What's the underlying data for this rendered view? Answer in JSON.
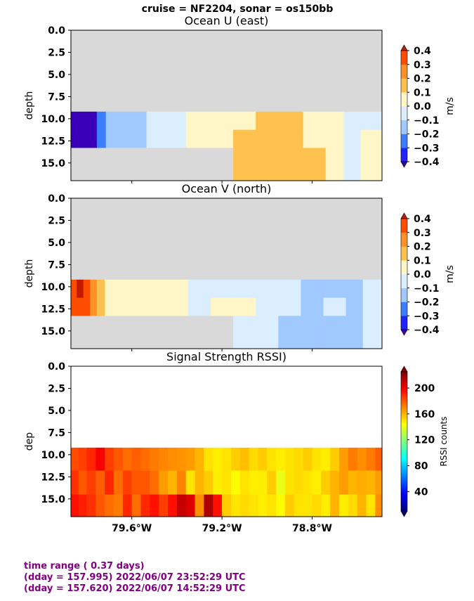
{
  "suptitle": "cruise = NF2204,  sonar = os150bb",
  "footer": {
    "line1": "time range ( 0.37 days)",
    "line2": "(dday = 157.995) 2022/06/07 23:52:29 UTC",
    "line3": "(dday = 157.620) 2022/06/07 14:52:29 UTC"
  },
  "x_axis": {
    "range": [
      79.87,
      78.49
    ],
    "ticks": [
      79.6,
      79.2,
      78.8
    ],
    "tick_labels": [
      "79.6°W",
      "79.2°W",
      "78.8°W"
    ]
  },
  "y_axis": {
    "range": [
      17,
      0
    ],
    "ticks": [
      0.0,
      2.5,
      5.0,
      7.5,
      10.0,
      12.5,
      15.0
    ],
    "tick_labels": [
      "0.0",
      "2.5",
      "5.0",
      "7.5",
      "10.0",
      "12.5",
      "15.0"
    ]
  },
  "colors": {
    "nodata": "#d9d9d9",
    "diverging_levels": [
      "#3a00b8",
      "#2222ff",
      "#3c7dff",
      "#a0c9ff",
      "#daeeff",
      "#fff6c8",
      "#ffc14d",
      "#ff9126",
      "#ff4d00",
      "#c41a00"
    ],
    "rssi_ramp": [
      "#00007f",
      "#0000ff",
      "#007fff",
      "#00ffff",
      "#7fff7f",
      "#ffff00",
      "#ff7f00",
      "#ff0000",
      "#7f0000"
    ]
  },
  "chart_data": [
    {
      "type": "heatmap",
      "title": "Ocean U (east)",
      "ylabel": "depth",
      "xlabel": "",
      "ylim": [
        17,
        0
      ],
      "colorbar": {
        "label": "m/s",
        "levels": [
          -0.4,
          -0.3,
          -0.2,
          -0.1,
          0.0,
          0.1,
          0.2,
          0.3,
          0.4
        ],
        "tick_labels": [
          "0.4",
          "0.3",
          "0.2",
          "0.1",
          "0.0",
          "−0.1",
          "−0.2",
          "−0.3",
          "−0.4"
        ]
      },
      "depths": [
        10.0,
        12.5,
        15.0
      ],
      "columns": [
        {
          "lon": 79.86,
          "values": [
            -0.42,
            -0.4,
            null
          ]
        },
        {
          "lon": 79.83,
          "values": [
            -0.42,
            -0.4,
            null
          ]
        },
        {
          "lon": 79.78,
          "values": [
            -0.42,
            -0.41,
            null
          ]
        },
        {
          "lon": 79.73,
          "values": [
            -0.3,
            -0.25,
            null
          ]
        },
        {
          "lon": 79.7,
          "values": [
            -0.15,
            -0.15,
            null
          ]
        },
        {
          "lon": 79.55,
          "values": [
            -0.15,
            -0.15,
            null
          ]
        },
        {
          "lon": 79.52,
          "values": [
            -0.05,
            -0.05,
            null
          ]
        },
        {
          "lon": 79.4,
          "values": [
            -0.05,
            -0.02,
            null
          ]
        },
        {
          "lon": 79.32,
          "values": [
            0.05,
            0.05,
            null
          ]
        },
        {
          "lon": 79.2,
          "values": [
            0.05,
            0.05,
            null
          ]
        },
        {
          "lon": 79.1,
          "values": [
            0.05,
            0.15,
            0.15
          ]
        },
        {
          "lon": 79.0,
          "values": [
            0.15,
            0.15,
            0.15
          ]
        },
        {
          "lon": 78.9,
          "values": [
            0.12,
            0.15,
            0.15
          ]
        },
        {
          "lon": 78.78,
          "values": [
            0.05,
            0.05,
            0.15
          ]
        },
        {
          "lon": 78.7,
          "values": [
            0.05,
            0.05,
            0.05
          ]
        },
        {
          "lon": 78.62,
          "values": [
            -0.05,
            -0.05,
            -0.05
          ]
        },
        {
          "lon": 78.55,
          "values": [
            -0.05,
            0.05,
            0.05
          ]
        },
        {
          "lon": 78.5,
          "values": [
            -0.05,
            0.05,
            0.05
          ]
        }
      ]
    },
    {
      "type": "heatmap",
      "title": "Ocean V (north)",
      "ylabel": "depth",
      "xlabel": "",
      "ylim": [
        17,
        0
      ],
      "colorbar": {
        "label": "m/s",
        "levels": [
          -0.4,
          -0.3,
          -0.2,
          -0.1,
          0.0,
          0.1,
          0.2,
          0.3,
          0.4
        ],
        "tick_labels": [
          "0.4",
          "0.3",
          "0.2",
          "0.1",
          "0.0",
          "−0.1",
          "−0.2",
          "−0.3",
          "−0.4"
        ]
      },
      "depths": [
        10.0,
        12.5,
        15.0
      ],
      "columns": [
        {
          "lon": 79.86,
          "values": [
            0.35,
            0.32,
            null
          ]
        },
        {
          "lon": 79.83,
          "values": [
            0.45,
            0.38,
            null
          ]
        },
        {
          "lon": 79.8,
          "values": [
            0.35,
            0.35,
            null
          ]
        },
        {
          "lon": 79.77,
          "values": [
            0.25,
            0.25,
            null
          ]
        },
        {
          "lon": 79.74,
          "values": [
            0.15,
            0.15,
            null
          ]
        },
        {
          "lon": 79.7,
          "values": [
            0.05,
            0.05,
            null
          ]
        },
        {
          "lon": 79.55,
          "values": [
            0.05,
            0.05,
            null
          ]
        },
        {
          "lon": 79.4,
          "values": [
            0.05,
            0.05,
            null
          ]
        },
        {
          "lon": 79.3,
          "values": [
            -0.05,
            -0.05,
            null
          ]
        },
        {
          "lon": 79.2,
          "values": [
            -0.05,
            0.05,
            null
          ]
        },
        {
          "lon": 79.1,
          "values": [
            -0.05,
            0.05,
            -0.05
          ]
        },
        {
          "lon": 79.0,
          "values": [
            -0.05,
            -0.05,
            -0.05
          ]
        },
        {
          "lon": 78.9,
          "values": [
            -0.05,
            -0.05,
            -0.15
          ]
        },
        {
          "lon": 78.8,
          "values": [
            -0.15,
            -0.15,
            -0.15
          ]
        },
        {
          "lon": 78.7,
          "values": [
            -0.15,
            -0.05,
            -0.15
          ]
        },
        {
          "lon": 78.6,
          "values": [
            -0.15,
            -0.15,
            -0.15
          ]
        },
        {
          "lon": 78.55,
          "values": [
            -0.05,
            -0.05,
            -0.05
          ]
        },
        {
          "lon": 78.5,
          "values": [
            -0.05,
            -0.05,
            -0.05
          ]
        }
      ]
    },
    {
      "type": "heatmap",
      "title": "Signal Strength RSSI)",
      "ylabel": "dep",
      "xlabel": "",
      "ylim": [
        17,
        0
      ],
      "colorbar": {
        "label": "RSSI counts",
        "range": [
          10,
          225
        ],
        "ticks": [
          40,
          80,
          120,
          160,
          200
        ],
        "tick_labels": [
          "40",
          "80",
          "120",
          "160",
          "200"
        ]
      },
      "depths": [
        10.0,
        12.5,
        15.0
      ],
      "x_edges": [
        79.87,
        79.836,
        79.8,
        79.76,
        79.72,
        79.68,
        79.64,
        79.6,
        79.56,
        79.52,
        79.48,
        79.44,
        79.4,
        79.36,
        79.32,
        79.28,
        79.24,
        79.2,
        79.16,
        79.12,
        79.08,
        79.04,
        79.0,
        78.96,
        78.92,
        78.88,
        78.84,
        78.8,
        78.76,
        78.72,
        78.68,
        78.64,
        78.6,
        78.56,
        78.52,
        78.49
      ],
      "rows": [
        [
          182,
          185,
          190,
          200,
          185,
          180,
          175,
          178,
          175,
          172,
          170,
          168,
          167,
          165,
          160,
          150,
          148,
          150,
          155,
          158,
          152,
          155,
          150,
          148,
          150,
          152,
          155,
          150,
          148,
          155,
          165,
          172,
          168,
          172,
          178
        ],
        [
          188,
          180,
          185,
          178,
          190,
          175,
          185,
          180,
          180,
          175,
          165,
          160,
          170,
          150,
          160,
          155,
          148,
          150,
          145,
          150,
          148,
          148,
          155,
          140,
          150,
          152,
          150,
          148,
          155,
          160,
          165,
          160,
          162,
          160,
          165
        ],
        [
          195,
          192,
          188,
          180,
          175,
          172,
          190,
          175,
          190,
          195,
          185,
          195,
          210,
          205,
          168,
          215,
          195,
          155,
          150,
          152,
          150,
          148,
          150,
          145,
          155,
          150,
          150,
          152,
          148,
          160,
          148,
          152,
          160,
          150,
          168
        ]
      ]
    }
  ]
}
